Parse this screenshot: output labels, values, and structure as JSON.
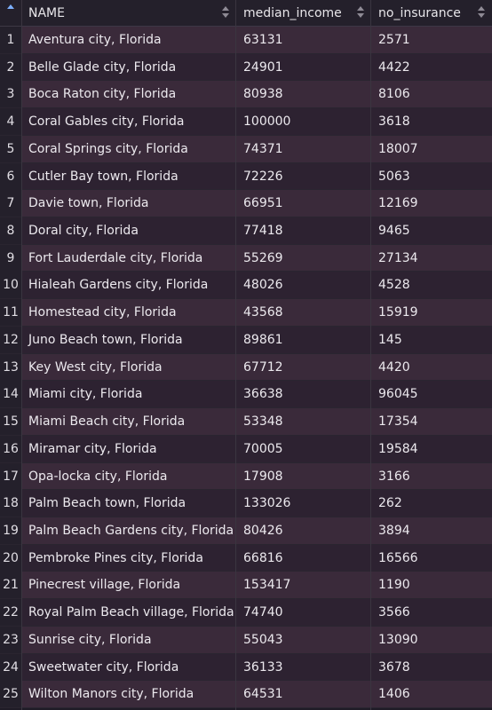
{
  "header": {
    "index_label": "",
    "columns": [
      "NAME",
      "median_income",
      "no_insurance"
    ]
  },
  "rows": [
    {
      "i": "1",
      "name": "Aventura city, Florida",
      "median_income": "63131",
      "no_insurance": "2571"
    },
    {
      "i": "2",
      "name": "Belle Glade city, Florida",
      "median_income": "24901",
      "no_insurance": "4422"
    },
    {
      "i": "3",
      "name": "Boca Raton city, Florida",
      "median_income": "80938",
      "no_insurance": "8106"
    },
    {
      "i": "4",
      "name": "Coral Gables city, Florida",
      "median_income": "100000",
      "no_insurance": "3618"
    },
    {
      "i": "5",
      "name": "Coral Springs city, Florida",
      "median_income": "74371",
      "no_insurance": "18007"
    },
    {
      "i": "6",
      "name": "Cutler Bay town, Florida",
      "median_income": "72226",
      "no_insurance": "5063"
    },
    {
      "i": "7",
      "name": "Davie town, Florida",
      "median_income": "66951",
      "no_insurance": "12169"
    },
    {
      "i": "8",
      "name": "Doral city, Florida",
      "median_income": "77418",
      "no_insurance": "9465"
    },
    {
      "i": "9",
      "name": "Fort Lauderdale city, Florida",
      "median_income": "55269",
      "no_insurance": "27134"
    },
    {
      "i": "10",
      "name": "Hialeah Gardens city, Florida",
      "median_income": "48026",
      "no_insurance": "4528"
    },
    {
      "i": "11",
      "name": "Homestead city, Florida",
      "median_income": "43568",
      "no_insurance": "15919"
    },
    {
      "i": "12",
      "name": "Juno Beach town, Florida",
      "median_income": "89861",
      "no_insurance": "145"
    },
    {
      "i": "13",
      "name": "Key West city, Florida",
      "median_income": "67712",
      "no_insurance": "4420"
    },
    {
      "i": "14",
      "name": "Miami city, Florida",
      "median_income": "36638",
      "no_insurance": "96045"
    },
    {
      "i": "15",
      "name": "Miami Beach city, Florida",
      "median_income": "53348",
      "no_insurance": "17354"
    },
    {
      "i": "16",
      "name": "Miramar city, Florida",
      "median_income": "70005",
      "no_insurance": "19584"
    },
    {
      "i": "17",
      "name": "Opa-locka city, Florida",
      "median_income": "17908",
      "no_insurance": "3166"
    },
    {
      "i": "18",
      "name": "Palm Beach town, Florida",
      "median_income": "133026",
      "no_insurance": "262"
    },
    {
      "i": "19",
      "name": "Palm Beach Gardens city, Florida",
      "median_income": "80426",
      "no_insurance": "3894"
    },
    {
      "i": "20",
      "name": "Pembroke Pines city, Florida",
      "median_income": "66816",
      "no_insurance": "16566"
    },
    {
      "i": "21",
      "name": "Pinecrest village, Florida",
      "median_income": "153417",
      "no_insurance": "1190"
    },
    {
      "i": "22",
      "name": "Royal Palm Beach village, Florida",
      "median_income": "74740",
      "no_insurance": "3566"
    },
    {
      "i": "23",
      "name": "Sunrise city, Florida",
      "median_income": "55043",
      "no_insurance": "13090"
    },
    {
      "i": "24",
      "name": "Sweetwater city, Florida",
      "median_income": "36133",
      "no_insurance": "3678"
    },
    {
      "i": "25",
      "name": "Wilton Manors city, Florida",
      "median_income": "64531",
      "no_insurance": "1406"
    }
  ],
  "colors": {
    "header_bg": "#24202b",
    "row_odd": "#3a2a3a",
    "row_even": "#2d2231",
    "sort_active": "#7db0ff"
  },
  "icons": {
    "index_sort": "sort-ascending-icon",
    "column_sort": "sort-updown-icon"
  }
}
